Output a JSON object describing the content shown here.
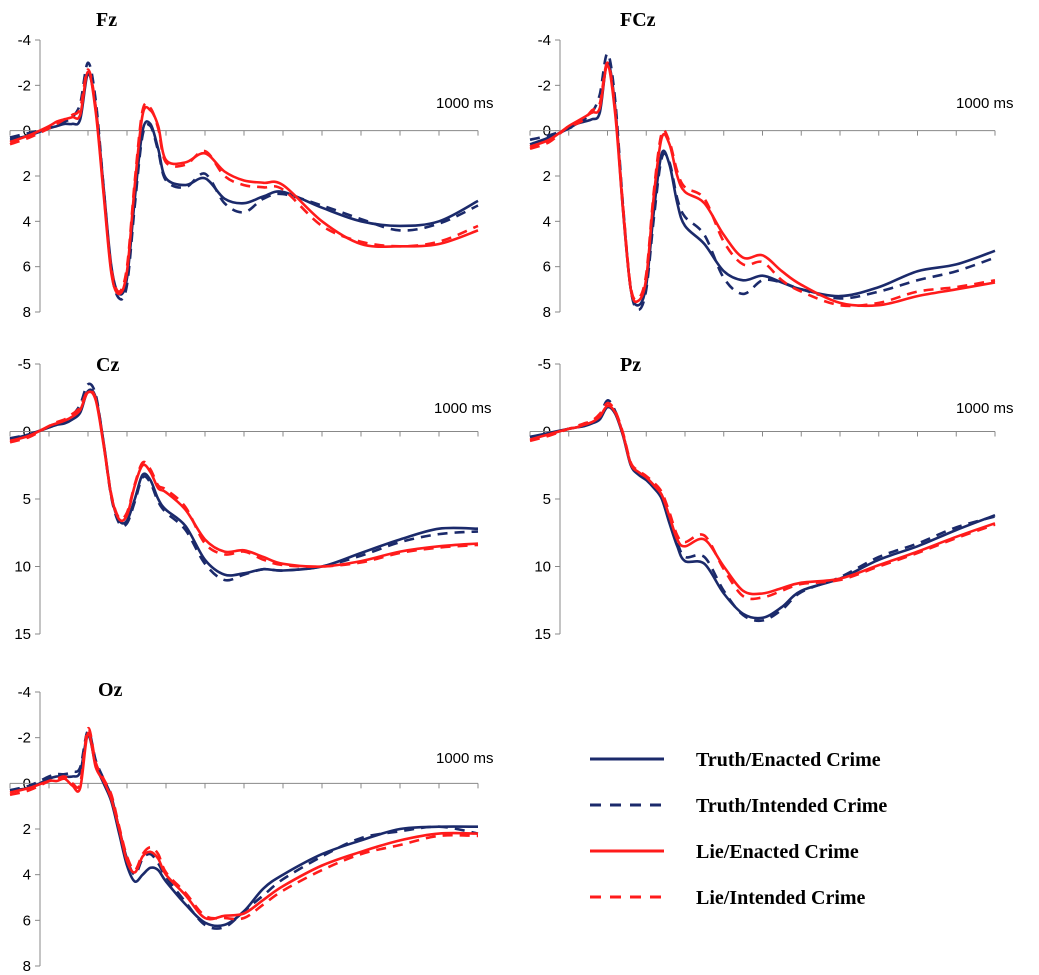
{
  "chart_data": [
    {
      "type": "line",
      "title": "Fz",
      "x_end_label": "1000 ms",
      "yticks": [
        "-4",
        "-2",
        "0",
        "2",
        "4",
        "6",
        "8"
      ],
      "ylim": [
        8,
        -4
      ],
      "xlim": [
        -200,
        1000
      ],
      "x": [
        -200,
        -150,
        -100,
        -80,
        -60,
        -40,
        -20,
        0,
        20,
        40,
        60,
        80,
        100,
        120,
        140,
        160,
        180,
        200,
        250,
        300,
        350,
        400,
        450,
        500,
        600,
        700,
        800,
        900,
        1000
      ],
      "series": [
        {
          "name": "Truth/Enacted Crime",
          "color": "#1b2a6b",
          "dash": false,
          "values": [
            0.4,
            0.2,
            -0.1,
            -0.2,
            -0.3,
            -0.3,
            -0.5,
            -2.5,
            -1.0,
            2.5,
            6.0,
            7.2,
            6.5,
            3.0,
            0.0,
            -0.3,
            0.8,
            2.1,
            2.4,
            2.1,
            3.0,
            3.2,
            2.9,
            2.7,
            3.4,
            4.0,
            4.2,
            4.0,
            3.1
          ]
        },
        {
          "name": "Truth/Intended Crime",
          "color": "#1b2a6b",
          "dash": true,
          "values": [
            0.3,
            0.1,
            -0.1,
            -0.3,
            -0.4,
            -0.6,
            -1.2,
            -3.0,
            -1.3,
            2.5,
            6.2,
            7.4,
            6.8,
            3.3,
            0.2,
            -0.2,
            0.9,
            2.2,
            2.5,
            1.9,
            3.2,
            3.6,
            3.0,
            2.8,
            3.3,
            3.9,
            4.4,
            4.1,
            3.3
          ]
        },
        {
          "name": "Lie/Enacted Crime",
          "color": "#ff1b1b",
          "dash": false,
          "values": [
            0.5,
            0.2,
            -0.2,
            -0.4,
            -0.5,
            -0.6,
            -0.7,
            -2.6,
            -0.8,
            2.8,
            6.3,
            7.2,
            6.2,
            2.4,
            -0.7,
            -0.9,
            -0.2,
            1.3,
            1.4,
            1.0,
            1.8,
            2.2,
            2.3,
            2.4,
            4.0,
            5.0,
            5.1,
            5.0,
            4.4
          ]
        },
        {
          "name": "Lie/Intended Crime",
          "color": "#ff1b1b",
          "dash": true,
          "values": [
            0.6,
            0.3,
            -0.1,
            -0.3,
            -0.5,
            -0.7,
            -1.0,
            -2.7,
            -1.0,
            2.7,
            6.1,
            7.1,
            6.0,
            2.2,
            -0.9,
            -1.0,
            -0.1,
            1.4,
            1.5,
            0.9,
            2.0,
            2.4,
            2.5,
            2.6,
            4.2,
            4.9,
            5.1,
            4.9,
            4.2
          ]
        }
      ]
    },
    {
      "type": "line",
      "title": "FCz",
      "x_end_label": "1000 ms",
      "yticks": [
        "-4",
        "-2",
        "0",
        "2",
        "4",
        "6",
        "8"
      ],
      "ylim": [
        8,
        -4
      ],
      "xlim": [
        -200,
        1000
      ],
      "x": [
        -200,
        -150,
        -100,
        -80,
        -60,
        -40,
        -20,
        0,
        20,
        40,
        60,
        80,
        100,
        120,
        140,
        160,
        180,
        200,
        250,
        300,
        350,
        400,
        450,
        500,
        600,
        700,
        800,
        900,
        1000
      ],
      "series": [
        {
          "name": "Truth/Enacted Crime",
          "color": "#1b2a6b",
          "dash": false,
          "values": [
            0.6,
            0.3,
            -0.1,
            -0.3,
            -0.4,
            -0.5,
            -0.8,
            -3.0,
            -1.0,
            3.5,
            7.0,
            7.7,
            6.8,
            3.5,
            1.0,
            1.5,
            3.2,
            4.2,
            5.0,
            6.2,
            6.6,
            6.4,
            6.7,
            7.0,
            7.3,
            6.9,
            6.2,
            5.9,
            5.3
          ]
        },
        {
          "name": "Truth/Intended Crime",
          "color": "#1b2a6b",
          "dash": true,
          "values": [
            0.4,
            0.2,
            -0.1,
            -0.3,
            -0.5,
            -0.8,
            -1.6,
            -3.4,
            -1.3,
            3.3,
            7.0,
            7.9,
            7.0,
            3.8,
            1.2,
            1.4,
            3.0,
            3.8,
            4.6,
            6.5,
            7.2,
            6.6,
            6.7,
            7.0,
            7.4,
            7.1,
            6.6,
            6.2,
            5.6
          ]
        },
        {
          "name": "Lie/Enacted Crime",
          "color": "#ff1b1b",
          "dash": false,
          "values": [
            0.7,
            0.4,
            -0.2,
            -0.4,
            -0.6,
            -0.8,
            -1.0,
            -2.9,
            -0.7,
            3.5,
            7.0,
            7.5,
            6.5,
            2.8,
            0.3,
            0.6,
            2.0,
            2.7,
            3.2,
            4.6,
            5.6,
            5.5,
            6.2,
            6.8,
            7.6,
            7.7,
            7.3,
            7.0,
            6.7
          ]
        },
        {
          "name": "Lie/Intended Crime",
          "color": "#ff1b1b",
          "dash": true,
          "values": [
            0.8,
            0.5,
            -0.2,
            -0.3,
            -0.5,
            -0.9,
            -1.2,
            -3.0,
            -0.9,
            3.3,
            6.9,
            7.4,
            6.3,
            2.6,
            0.1,
            0.5,
            1.8,
            2.5,
            3.0,
            4.9,
            5.9,
            5.8,
            6.6,
            7.1,
            7.7,
            7.6,
            7.1,
            6.9,
            6.6
          ]
        }
      ]
    },
    {
      "type": "line",
      "title": "Cz",
      "x_end_label": "1000 ms",
      "yticks": [
        "-5",
        "0",
        "5",
        "10",
        "15"
      ],
      "ylim": [
        15,
        -5
      ],
      "xlim": [
        -200,
        1000
      ],
      "x": [
        -200,
        -150,
        -100,
        -80,
        -60,
        -40,
        -20,
        0,
        20,
        40,
        60,
        80,
        100,
        120,
        140,
        160,
        180,
        200,
        250,
        300,
        350,
        400,
        450,
        500,
        600,
        700,
        800,
        900,
        1000
      ],
      "series": [
        {
          "name": "Truth/Enacted Crime",
          "color": "#1b2a6b",
          "dash": false,
          "values": [
            0.6,
            0.2,
            -0.3,
            -0.5,
            -0.6,
            -0.9,
            -1.4,
            -3.0,
            -2.5,
            0.8,
            4.8,
            6.6,
            6.6,
            5.0,
            3.2,
            3.6,
            5.0,
            5.8,
            7.0,
            9.5,
            10.6,
            10.5,
            10.2,
            10.3,
            10.0,
            9.0,
            8.0,
            7.2,
            7.2
          ]
        },
        {
          "name": "Truth/Intended Crime",
          "color": "#1b2a6b",
          "dash": true,
          "values": [
            0.5,
            0.2,
            -0.3,
            -0.5,
            -0.7,
            -1.2,
            -2.0,
            -3.5,
            -2.7,
            0.9,
            4.9,
            6.8,
            6.8,
            5.2,
            3.4,
            3.8,
            5.2,
            6.0,
            7.3,
            9.8,
            11.0,
            10.6,
            10.2,
            10.3,
            10.0,
            9.2,
            8.2,
            7.6,
            7.4
          ]
        },
        {
          "name": "Lie/Enacted Crime",
          "color": "#ff1b1b",
          "dash": false,
          "values": [
            0.7,
            0.3,
            -0.4,
            -0.6,
            -0.8,
            -1.1,
            -1.6,
            -2.9,
            -2.3,
            1.0,
            4.8,
            6.5,
            6.2,
            4.0,
            2.5,
            3.0,
            4.2,
            4.5,
            5.8,
            8.0,
            8.9,
            8.8,
            9.3,
            9.8,
            10.0,
            9.6,
            8.9,
            8.5,
            8.3
          ]
        },
        {
          "name": "Lie/Intended Crime",
          "color": "#ff1b1b",
          "dash": true,
          "values": [
            0.8,
            0.4,
            -0.4,
            -0.7,
            -0.9,
            -1.3,
            -1.8,
            -3.0,
            -2.4,
            0.9,
            4.7,
            6.4,
            6.0,
            3.9,
            2.3,
            2.8,
            4.0,
            4.3,
            5.6,
            8.3,
            9.1,
            8.9,
            9.5,
            9.9,
            10.0,
            9.7,
            9.0,
            8.6,
            8.4
          ]
        }
      ]
    },
    {
      "type": "line",
      "title": "Pz",
      "x_end_label": "1000 ms",
      "yticks": [
        "-5",
        "0",
        "5",
        "10",
        "15"
      ],
      "ylim": [
        15,
        -5
      ],
      "xlim": [
        -200,
        1000
      ],
      "x": [
        -200,
        -150,
        -100,
        -80,
        -60,
        -40,
        -20,
        0,
        20,
        40,
        60,
        80,
        100,
        120,
        140,
        160,
        180,
        200,
        250,
        300,
        350,
        400,
        450,
        500,
        600,
        700,
        800,
        900,
        1000
      ],
      "series": [
        {
          "name": "Truth/Enacted Crime",
          "color": "#1b2a6b",
          "dash": false,
          "values": [
            0.4,
            0.1,
            -0.2,
            -0.3,
            -0.4,
            -0.6,
            -0.9,
            -1.8,
            -1.3,
            0.3,
            2.5,
            3.2,
            3.6,
            4.2,
            5.0,
            6.8,
            8.5,
            9.6,
            9.8,
            12.0,
            13.5,
            13.8,
            13.0,
            11.8,
            10.9,
            9.5,
            8.5,
            7.3,
            6.2
          ]
        },
        {
          "name": "Truth/Intended Crime",
          "color": "#1b2a6b",
          "dash": true,
          "values": [
            0.4,
            0.2,
            -0.2,
            -0.3,
            -0.5,
            -0.7,
            -1.2,
            -2.3,
            -1.5,
            0.2,
            2.4,
            3.1,
            3.5,
            4.0,
            4.8,
            6.5,
            8.2,
            9.3,
            9.3,
            11.8,
            13.6,
            14.0,
            13.2,
            11.9,
            10.8,
            9.3,
            8.3,
            7.1,
            6.3
          ]
        },
        {
          "name": "Lie/Enacted Crime",
          "color": "#ff1b1b",
          "dash": false,
          "values": [
            0.6,
            0.2,
            -0.2,
            -0.3,
            -0.5,
            -0.7,
            -1.1,
            -1.9,
            -1.4,
            0.2,
            2.4,
            3.0,
            3.4,
            4.0,
            4.7,
            6.3,
            8.0,
            8.5,
            8.0,
            10.0,
            11.8,
            12.0,
            11.6,
            11.2,
            10.9,
            9.9,
            8.9,
            7.8,
            6.8
          ]
        },
        {
          "name": "Lie/Intended Crime",
          "color": "#ff1b1b",
          "dash": true,
          "values": [
            0.7,
            0.3,
            -0.2,
            -0.4,
            -0.6,
            -0.8,
            -1.3,
            -2.1,
            -1.5,
            0.1,
            2.3,
            2.9,
            3.3,
            3.8,
            4.5,
            6.0,
            7.7,
            8.2,
            7.7,
            10.2,
            12.2,
            12.3,
            11.8,
            11.3,
            11.0,
            10.0,
            9.0,
            7.9,
            6.9
          ]
        }
      ]
    },
    {
      "type": "line",
      "title": "Oz",
      "x_end_label": "1000 ms",
      "yticks": [
        "-4",
        "-2",
        "0",
        "2",
        "4",
        "6",
        "8"
      ],
      "ylim": [
        8,
        -4
      ],
      "xlim": [
        -200,
        1000
      ],
      "x": [
        -200,
        -150,
        -100,
        -80,
        -60,
        -40,
        -20,
        0,
        20,
        40,
        60,
        80,
        100,
        120,
        140,
        160,
        180,
        200,
        250,
        300,
        350,
        400,
        450,
        500,
        600,
        700,
        800,
        900,
        1000
      ],
      "series": [
        {
          "name": "Truth/Enacted Crime",
          "color": "#1b2a6b",
          "dash": false,
          "values": [
            0.3,
            0.2,
            -0.2,
            -0.3,
            -0.3,
            -0.3,
            -0.5,
            -2.1,
            -0.8,
            0.0,
            0.8,
            2.2,
            3.6,
            4.3,
            4.0,
            3.7,
            3.8,
            4.3,
            5.3,
            6.1,
            6.2,
            5.6,
            4.6,
            4.0,
            3.1,
            2.5,
            2.0,
            1.9,
            1.9
          ]
        },
        {
          "name": "Truth/Intended Crime",
          "color": "#1b2a6b",
          "dash": true,
          "values": [
            0.3,
            0.1,
            -0.3,
            -0.4,
            -0.4,
            -0.5,
            -0.7,
            -2.3,
            -1.0,
            -0.2,
            0.6,
            2.0,
            3.3,
            4.0,
            3.3,
            3.1,
            3.5,
            4.1,
            5.2,
            6.2,
            6.3,
            5.6,
            4.9,
            4.2,
            3.2,
            2.4,
            2.1,
            1.9,
            2.2
          ]
        },
        {
          "name": "Lie/Enacted Crime",
          "color": "#ff1b1b",
          "dash": false,
          "values": [
            0.4,
            0.2,
            -0.1,
            -0.1,
            -0.2,
            0.1,
            0.2,
            -2.2,
            -0.7,
            -0.1,
            0.7,
            2.0,
            3.4,
            3.9,
            3.2,
            3.0,
            3.3,
            4.0,
            4.9,
            5.9,
            5.8,
            5.7,
            5.1,
            4.5,
            3.6,
            3.0,
            2.5,
            2.2,
            2.2
          ]
        },
        {
          "name": "Lie/Intended Crime",
          "color": "#ff1b1b",
          "dash": true,
          "values": [
            0.5,
            0.3,
            -0.1,
            -0.2,
            -0.3,
            0.0,
            0.0,
            -2.4,
            -0.9,
            -0.2,
            0.5,
            1.9,
            3.2,
            3.8,
            3.1,
            2.8,
            3.1,
            3.9,
            4.8,
            5.8,
            5.9,
            5.9,
            5.3,
            4.7,
            3.8,
            3.1,
            2.7,
            2.3,
            2.3
          ]
        }
      ]
    }
  ],
  "legend": {
    "items": [
      {
        "label": "Truth/Enacted Crime",
        "color": "#1b2a6b",
        "dash": false
      },
      {
        "label": "Truth/Intended Crime",
        "color": "#1b2a6b",
        "dash": true
      },
      {
        "label": "Lie/Enacted Crime",
        "color": "#ff1b1b",
        "dash": false
      },
      {
        "label": "Lie/Intended Crime",
        "color": "#ff1b1b",
        "dash": true
      }
    ]
  }
}
